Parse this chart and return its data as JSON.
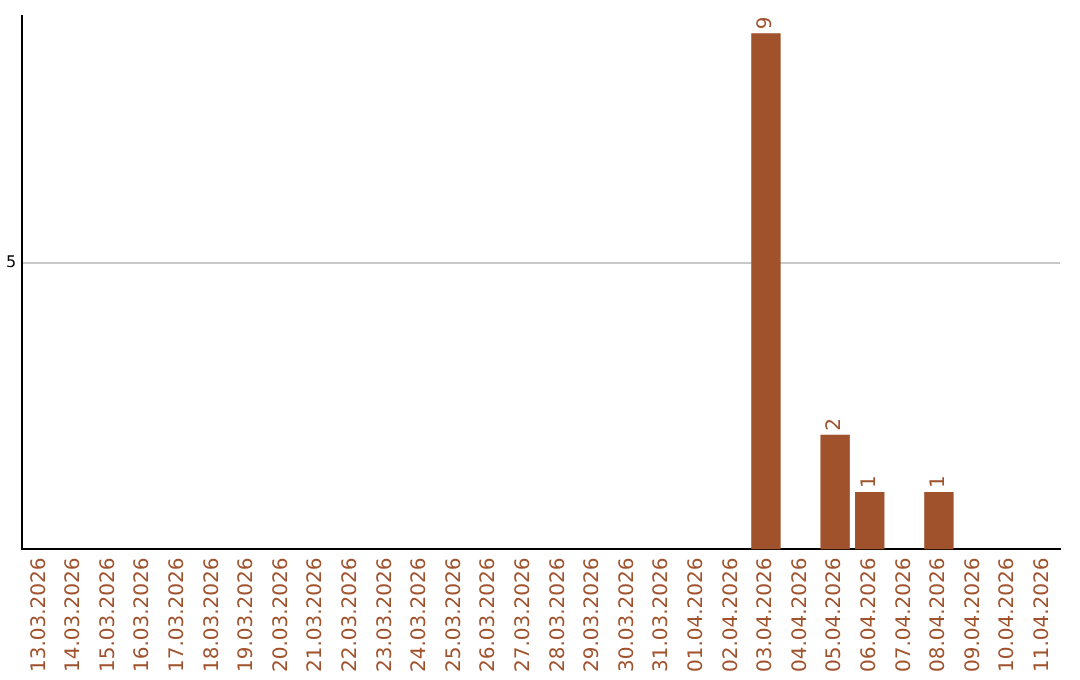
{
  "chart_data": {
    "type": "bar",
    "categories": [
      "13.03.2026",
      "14.03.2026",
      "15.03.2026",
      "16.03.2026",
      "17.03.2026",
      "18.03.2026",
      "19.03.2026",
      "20.03.2026",
      "21.03.2026",
      "22.03.2026",
      "23.03.2026",
      "24.03.2026",
      "25.03.2026",
      "26.03.2026",
      "27.03.2026",
      "28.03.2026",
      "29.03.2026",
      "30.03.2026",
      "31.03.2026",
      "01.04.2026",
      "02.04.2026",
      "03.04.2026",
      "04.04.2026",
      "05.04.2026",
      "06.04.2026",
      "07.04.2026",
      "08.04.2026",
      "09.04.2026",
      "10.04.2026",
      "11.04.2026"
    ],
    "values": [
      null,
      null,
      null,
      null,
      null,
      null,
      null,
      null,
      null,
      null,
      null,
      null,
      null,
      null,
      null,
      null,
      null,
      null,
      null,
      null,
      null,
      9,
      null,
      2,
      1,
      null,
      1,
      null,
      null,
      null
    ],
    "color": "#a0522d",
    "ylim": [
      0,
      9.3
    ],
    "yticks": [
      5
    ],
    "grid": "y",
    "data_labels": true
  }
}
